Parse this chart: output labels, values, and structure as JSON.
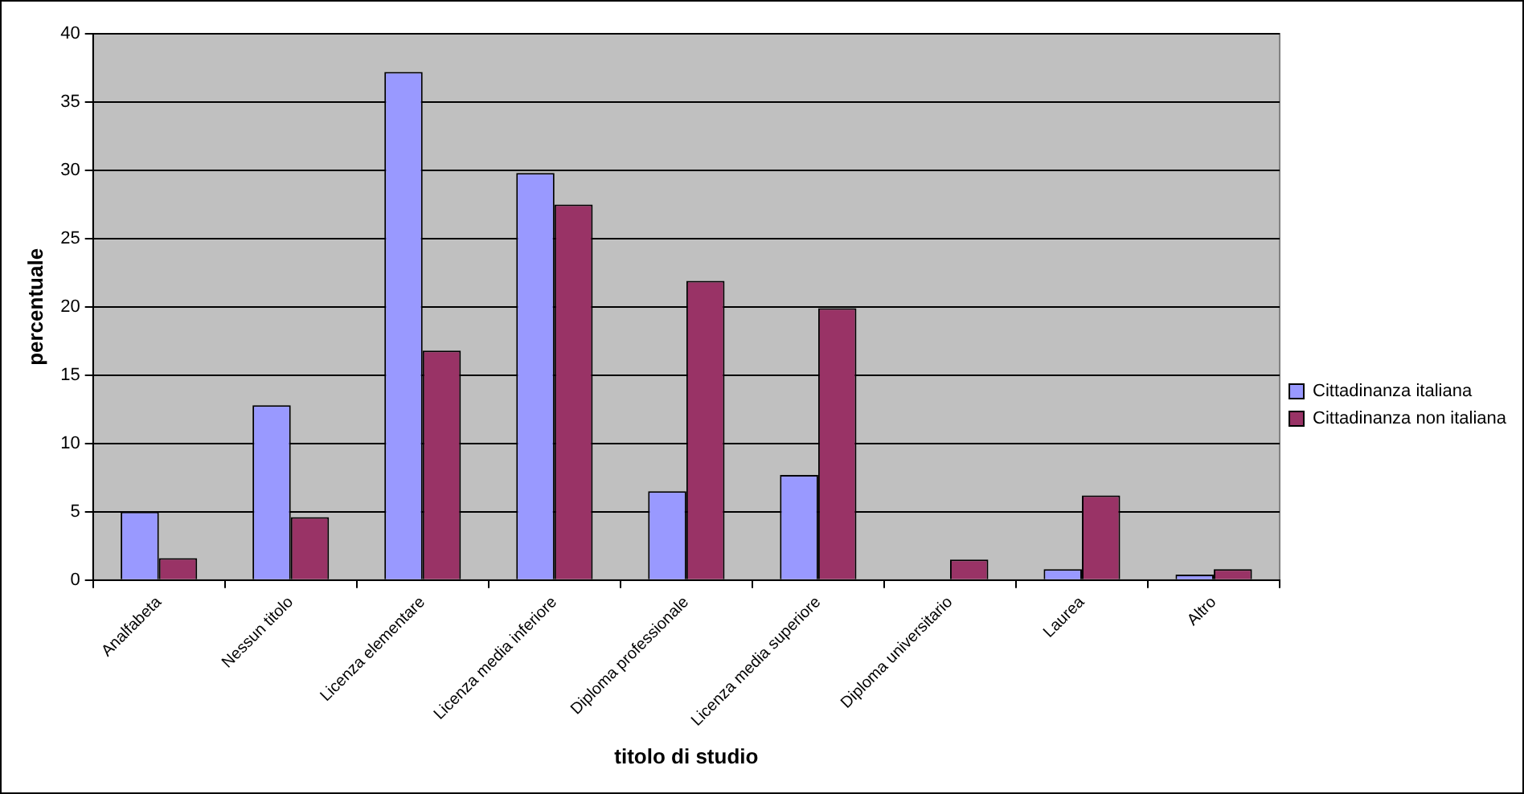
{
  "chart_data": {
    "type": "bar",
    "xlabel": "titolo di studio",
    "ylabel": "percentuale",
    "categories": [
      "Analfabeta",
      "Nessun titolo",
      "Licenza elementare",
      "Licenza media inferiore",
      "Diploma professionale",
      "Licenza media superiore",
      "Diploma universitario",
      "Laurea",
      "Altro"
    ],
    "series": [
      {
        "name": "Cittadinanza italiana",
        "color": "#9999ff",
        "values": [
          5.0,
          12.8,
          37.2,
          29.8,
          6.5,
          7.7,
          0,
          0.8,
          0.4
        ]
      },
      {
        "name": "Cittadinanza non italiana",
        "color": "#993366",
        "values": [
          1.6,
          4.6,
          16.8,
          27.5,
          21.9,
          19.9,
          1.5,
          6.2,
          0.8
        ]
      }
    ],
    "ylim": [
      0,
      40
    ],
    "yticks": [
      0,
      5,
      10,
      15,
      20,
      25,
      30,
      35,
      40
    ],
    "grid": "y",
    "legend": "right"
  }
}
